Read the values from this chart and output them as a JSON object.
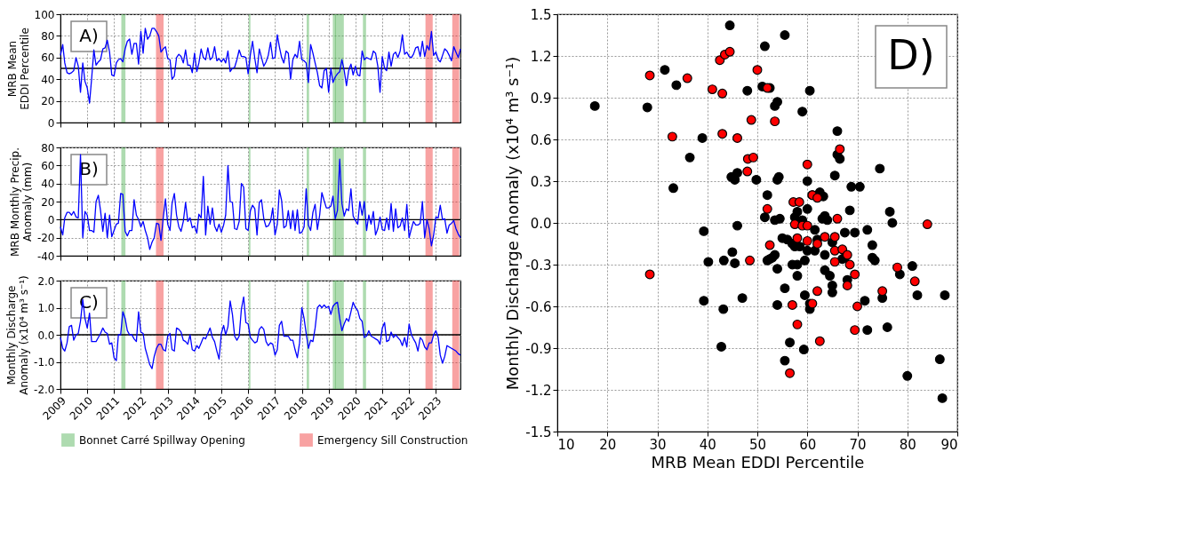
{
  "chart_data": [
    {
      "type": "line",
      "ylabel": "MRB Mean\nEDDI Percentile",
      "annotations": [
        "A)"
      ],
      "grid": true,
      "tick_labels": "y",
      "xlim": [
        "2009-01-01",
        "2023-12-01"
      ],
      "xticks": [
        "2009",
        "2010",
        "2011",
        "2012",
        "2013",
        "2014",
        "2015",
        "2016",
        "2017",
        "2018",
        "2019",
        "2020",
        "2021",
        "2022",
        "2023"
      ],
      "ylim": [
        0,
        100
      ],
      "yticks": [
        0,
        20,
        40,
        60,
        80,
        100
      ],
      "x": [
        "2009-01",
        "2009-02",
        "2009-03",
        "2009-04",
        "2009-05",
        "2009-06",
        "2009-07",
        "2009-08",
        "2009-09",
        "2009-10",
        "2009-11",
        "2009-12",
        "2010-01",
        "2010-02",
        "2010-03",
        "2010-04",
        "2010-05",
        "2010-06",
        "2010-07",
        "2010-08",
        "2010-09",
        "2010-10",
        "2010-11",
        "2010-12",
        "2011-01",
        "2011-02",
        "2011-03",
        "2011-04",
        "2011-05",
        "2011-06",
        "2011-07",
        "2011-08",
        "2011-09",
        "2011-10",
        "2011-11",
        "2011-12",
        "2012-01",
        "2012-02",
        "2012-03",
        "2012-04",
        "2012-05",
        "2012-06",
        "2012-07",
        "2012-08",
        "2012-09",
        "2012-10",
        "2012-11",
        "2012-12",
        "2013-01",
        "2013-02",
        "2013-03",
        "2013-04",
        "2013-05",
        "2013-06",
        "2013-07",
        "2013-08",
        "2013-09",
        "2013-10",
        "2013-11",
        "2013-12",
        "2014-01",
        "2014-02",
        "2014-03",
        "2014-04",
        "2014-05",
        "2014-06",
        "2014-07",
        "2014-08",
        "2014-09",
        "2014-10",
        "2014-11",
        "2014-12",
        "2015-01",
        "2015-02",
        "2015-03",
        "2015-04",
        "2015-05",
        "2015-06",
        "2015-07",
        "2015-08",
        "2015-09",
        "2015-10",
        "2015-11",
        "2015-12",
        "2016-01",
        "2016-02",
        "2016-03",
        "2016-04",
        "2016-05",
        "2016-06",
        "2016-07",
        "2016-08",
        "2016-09",
        "2016-10",
        "2016-11",
        "2016-12",
        "2017-01",
        "2017-02",
        "2017-03",
        "2017-04",
        "2017-05",
        "2017-06",
        "2017-07",
        "2017-08",
        "2017-09",
        "2017-10",
        "2017-11",
        "2017-12",
        "2018-01",
        "2018-02",
        "2018-03",
        "2018-04",
        "2018-05",
        "2018-06",
        "2018-07",
        "2018-08",
        "2018-09",
        "2018-10",
        "2018-11",
        "2018-12",
        "2019-01",
        "2019-02",
        "2019-03",
        "2019-04",
        "2019-05",
        "2019-06",
        "2019-07",
        "2019-08",
        "2019-09",
        "2019-10",
        "2019-11",
        "2019-12",
        "2020-01",
        "2020-02",
        "2020-03",
        "2020-04",
        "2020-05",
        "2020-06",
        "2020-07",
        "2020-08",
        "2020-09",
        "2020-10",
        "2020-11",
        "2020-12",
        "2021-01",
        "2021-02",
        "2021-03",
        "2021-04",
        "2021-05",
        "2021-06",
        "2021-07",
        "2021-08",
        "2021-09",
        "2021-10",
        "2021-11",
        "2021-12",
        "2022-01",
        "2022-02",
        "2022-03",
        "2022-04",
        "2022-05",
        "2022-06",
        "2022-07",
        "2022-08",
        "2022-09",
        "2022-10",
        "2022-11",
        "2022-12",
        "2023-01",
        "2023-02",
        "2023-03",
        "2023-04",
        "2023-05",
        "2023-06",
        "2023-07",
        "2023-08",
        "2023-09",
        "2023-10",
        "2023-11",
        "2023-12"
      ],
      "series": [
        {
          "color": "#0000ff",
          "values": [
            62,
            72,
            55,
            46,
            45,
            46,
            48,
            60,
            52,
            28,
            55,
            38,
            32,
            18,
            40,
            67,
            53,
            56,
            58,
            68,
            69,
            76,
            65,
            44,
            43,
            55,
            58,
            59,
            56,
            68,
            75,
            77,
            63,
            73,
            73,
            54,
            84,
            64,
            87,
            77,
            80,
            87,
            87,
            84,
            80,
            65,
            68,
            70,
            59,
            58,
            40,
            43,
            60,
            63,
            61,
            55,
            67,
            53,
            53,
            46,
            64,
            47,
            55,
            68,
            60,
            58,
            69,
            58,
            60,
            70,
            57,
            59,
            56,
            59,
            55,
            66,
            47,
            50,
            51,
            58,
            67,
            61,
            61,
            60,
            45,
            63,
            75,
            59,
            46,
            68,
            60,
            52,
            56,
            62,
            74,
            59,
            60,
            81,
            70,
            60,
            55,
            66,
            64,
            40,
            58,
            63,
            60,
            75,
            58,
            57,
            55,
            37,
            72,
            64,
            55,
            46,
            34,
            32,
            48,
            50,
            28,
            50,
            37,
            42,
            45,
            47,
            58,
            48,
            34,
            48,
            54,
            44,
            52,
            44,
            43,
            66,
            58,
            60,
            59,
            58,
            66,
            64,
            52,
            28,
            61,
            50,
            48,
            65,
            52,
            63,
            65,
            60,
            66,
            81,
            63,
            65,
            61,
            60,
            63,
            69,
            70,
            61,
            75,
            61,
            71,
            67,
            84,
            62,
            65,
            58,
            56,
            62,
            68,
            66,
            62,
            57,
            70,
            65,
            60,
            68
          ]
        }
      ],
      "ref_lines": [
        {
          "axis": "y",
          "value": 50,
          "color": "#000000"
        }
      ],
      "bands": [
        {
          "axis": "x",
          "from": "2011-04-10",
          "to": "2011-06-05",
          "color": "#4caf50"
        },
        {
          "axis": "x",
          "from": "2012-07-25",
          "to": "2012-11-05",
          "color": "#f03030"
        },
        {
          "axis": "x",
          "from": "2016-01-10",
          "to": "2016-02-01",
          "color": "#4caf50"
        },
        {
          "axis": "x",
          "from": "2018-03-08",
          "to": "2018-04-10",
          "color": "#4caf50"
        },
        {
          "axis": "x",
          "from": "2019-02-27",
          "to": "2019-04-11",
          "color": "#4caf50"
        },
        {
          "axis": "x",
          "from": "2019-04-01",
          "to": "2019-07-27",
          "color": "#4caf50"
        },
        {
          "axis": "x",
          "from": "2020-04-12",
          "to": "2020-05-25",
          "color": "#4caf50"
        },
        {
          "axis": "x",
          "from": "2022-08-12",
          "to": "2022-11-18",
          "color": "#f03030"
        },
        {
          "axis": "x",
          "from": "2023-08-12",
          "to": "2023-11-15",
          "color": "#f03030"
        }
      ]
    },
    {
      "type": "line",
      "ylabel": "MRB Monthly Precip.\nAnomaly (mm)",
      "annotations": [
        "B)"
      ],
      "grid": true,
      "tick_labels": "y",
      "xlim": [
        "2009-01-01",
        "2023-12-01"
      ],
      "xticks": [
        "2009",
        "2010",
        "2011",
        "2012",
        "2013",
        "2014",
        "2015",
        "2016",
        "2017",
        "2018",
        "2019",
        "2020",
        "2021",
        "2022",
        "2023"
      ],
      "ylim": [
        -40,
        80
      ],
      "yticks": [
        -40,
        -20,
        0,
        20,
        40,
        60,
        80
      ],
      "x": [
        "2009-01",
        "2009-02",
        "2009-03",
        "2009-04",
        "2009-05",
        "2009-06",
        "2009-07",
        "2009-08",
        "2009-09",
        "2009-10",
        "2009-11",
        "2009-12",
        "2010-01",
        "2010-02",
        "2010-03",
        "2010-04",
        "2010-05",
        "2010-06",
        "2010-07",
        "2010-08",
        "2010-09",
        "2010-10",
        "2010-11",
        "2010-12",
        "2011-01",
        "2011-02",
        "2011-03",
        "2011-04",
        "2011-05",
        "2011-06",
        "2011-07",
        "2011-08",
        "2011-09",
        "2011-10",
        "2011-11",
        "2011-12",
        "2012-01",
        "2012-02",
        "2012-03",
        "2012-04",
        "2012-05",
        "2012-06",
        "2012-07",
        "2012-08",
        "2012-09",
        "2012-10",
        "2012-11",
        "2012-12",
        "2013-01",
        "2013-02",
        "2013-03",
        "2013-04",
        "2013-05",
        "2013-06",
        "2013-07",
        "2013-08",
        "2013-09",
        "2013-10",
        "2013-11",
        "2013-12",
        "2014-01",
        "2014-02",
        "2014-03",
        "2014-04",
        "2014-05",
        "2014-06",
        "2014-07",
        "2014-08",
        "2014-09",
        "2014-10",
        "2014-11",
        "2014-12",
        "2015-01",
        "2015-02",
        "2015-03",
        "2015-04",
        "2015-05",
        "2015-06",
        "2015-07",
        "2015-08",
        "2015-09",
        "2015-10",
        "2015-11",
        "2015-12",
        "2016-01",
        "2016-02",
        "2016-03",
        "2016-04",
        "2016-05",
        "2016-06",
        "2016-07",
        "2016-08",
        "2016-09",
        "2016-10",
        "2016-11",
        "2016-12",
        "2017-01",
        "2017-02",
        "2017-03",
        "2017-04",
        "2017-05",
        "2017-06",
        "2017-07",
        "2017-08",
        "2017-09",
        "2017-10",
        "2017-11",
        "2017-12",
        "2018-01",
        "2018-02",
        "2018-03",
        "2018-04",
        "2018-05",
        "2018-06",
        "2018-07",
        "2018-08",
        "2018-09",
        "2018-10",
        "2018-11",
        "2018-12",
        "2019-01",
        "2019-02",
        "2019-03",
        "2019-04",
        "2019-05",
        "2019-06",
        "2019-07",
        "2019-08",
        "2019-09",
        "2019-10",
        "2019-11",
        "2019-12",
        "2020-01",
        "2020-02",
        "2020-03",
        "2020-04",
        "2020-05",
        "2020-06",
        "2020-07",
        "2020-08",
        "2020-09",
        "2020-10",
        "2020-11",
        "2020-12",
        "2021-01",
        "2021-02",
        "2021-03",
        "2021-04",
        "2021-05",
        "2021-06",
        "2021-07",
        "2021-08",
        "2021-09",
        "2021-10",
        "2021-11",
        "2021-12",
        "2022-01",
        "2022-02",
        "2022-03",
        "2022-04",
        "2022-05",
        "2022-06",
        "2022-07",
        "2022-08",
        "2022-09",
        "2022-10",
        "2022-11",
        "2022-12",
        "2023-01",
        "2023-02",
        "2023-03",
        "2023-04",
        "2023-05",
        "2023-06",
        "2023-07",
        "2023-08",
        "2023-09",
        "2023-10",
        "2023-11",
        "2023-12"
      ],
      "series": [
        {
          "color": "#0000ff",
          "values": [
            -8,
            -17,
            2,
            8,
            8,
            5,
            9,
            3,
            2,
            72,
            -20,
            9,
            5,
            -12,
            -12,
            -14,
            20,
            27,
            10,
            -13,
            7,
            -20,
            5,
            -19,
            -12,
            -5,
            -4,
            29,
            28,
            -13,
            -18,
            -12,
            -12,
            22,
            5,
            0,
            -8,
            -2,
            -12,
            -20,
            -33,
            -25,
            -20,
            -4,
            -5,
            -23,
            2,
            23,
            -5,
            -12,
            18,
            29,
            5,
            -8,
            -13,
            -2,
            19,
            -2,
            2,
            -9,
            -7,
            -15,
            6,
            2,
            48,
            -17,
            15,
            -5,
            13,
            -7,
            -13,
            -5,
            -14,
            -6,
            5,
            60,
            20,
            19,
            -10,
            -11,
            -2,
            40,
            36,
            -10,
            -12,
            10,
            16,
            12,
            -17,
            19,
            22,
            1,
            -8,
            -7,
            -2,
            13,
            -17,
            -5,
            33,
            21,
            -9,
            -7,
            10,
            -10,
            10,
            -12,
            11,
            -15,
            -14,
            -8,
            34,
            -6,
            -12,
            8,
            17,
            -11,
            5,
            30,
            21,
            13,
            13,
            15,
            26,
            1,
            10,
            67,
            18,
            4,
            12,
            10,
            34,
            4,
            -1,
            -5,
            20,
            5,
            20,
            -12,
            5,
            -5,
            9,
            -17,
            -10,
            3,
            -11,
            -12,
            2,
            -11,
            18,
            -13,
            12,
            -9,
            -7,
            2,
            -12,
            17,
            -20,
            -10,
            -2,
            -6,
            -6,
            -4,
            20,
            -20,
            0,
            -10,
            -29,
            -17,
            3,
            2,
            16,
            0,
            1,
            -15,
            -6,
            -4,
            -1,
            -10,
            -16,
            -20
          ]
        }
      ],
      "ref_lines": [
        {
          "axis": "y",
          "value": 0,
          "color": "#000000"
        }
      ],
      "bands": [
        {
          "axis": "x",
          "from": "2011-04-10",
          "to": "2011-06-05",
          "color": "#4caf50"
        },
        {
          "axis": "x",
          "from": "2012-07-25",
          "to": "2012-11-05",
          "color": "#f03030"
        },
        {
          "axis": "x",
          "from": "2016-01-10",
          "to": "2016-02-01",
          "color": "#4caf50"
        },
        {
          "axis": "x",
          "from": "2018-03-08",
          "to": "2018-04-10",
          "color": "#4caf50"
        },
        {
          "axis": "x",
          "from": "2019-02-27",
          "to": "2019-04-11",
          "color": "#4caf50"
        },
        {
          "axis": "x",
          "from": "2019-04-01",
          "to": "2019-07-27",
          "color": "#4caf50"
        },
        {
          "axis": "x",
          "from": "2020-04-12",
          "to": "2020-05-25",
          "color": "#4caf50"
        },
        {
          "axis": "x",
          "from": "2022-08-12",
          "to": "2022-11-18",
          "color": "#f03030"
        },
        {
          "axis": "x",
          "from": "2023-08-12",
          "to": "2023-11-15",
          "color": "#f03030"
        }
      ]
    },
    {
      "type": "line",
      "ylabel": "Monthly Discharge\nAnomaly (x10⁴ m³ s⁻¹)",
      "annotations": [
        "C)"
      ],
      "grid": true,
      "legend": "bottom",
      "xlim": [
        "2009-01-01",
        "2023-12-01"
      ],
      "xticks": [
        "2009",
        "2010",
        "2011",
        "2012",
        "2013",
        "2014",
        "2015",
        "2016",
        "2017",
        "2018",
        "2019",
        "2020",
        "2021",
        "2022",
        "2023"
      ],
      "ylim": [
        -2,
        2
      ],
      "yticks": [
        {
          "value": -2,
          "label": "-2.0"
        },
        {
          "value": -1,
          "label": "-1.0"
        },
        {
          "value": 0,
          "label": "0.0"
        },
        {
          "value": 1,
          "label": "1.0"
        },
        {
          "value": 2,
          "label": "2.0"
        }
      ],
      "x": [
        "2009-01",
        "2009-02",
        "2009-03",
        "2009-04",
        "2009-05",
        "2009-06",
        "2009-07",
        "2009-08",
        "2009-09",
        "2009-10",
        "2009-11",
        "2009-12",
        "2010-01",
        "2010-02",
        "2010-03",
        "2010-04",
        "2010-05",
        "2010-06",
        "2010-07",
        "2010-08",
        "2010-09",
        "2010-10",
        "2010-11",
        "2010-12",
        "2011-01",
        "2011-02",
        "2011-03",
        "2011-04",
        "2011-05",
        "2011-06",
        "2011-07",
        "2011-08",
        "2011-09",
        "2011-10",
        "2011-11",
        "2011-12",
        "2012-01",
        "2012-02",
        "2012-03",
        "2012-04",
        "2012-05",
        "2012-06",
        "2012-07",
        "2012-08",
        "2012-09",
        "2012-10",
        "2012-11",
        "2012-12",
        "2013-01",
        "2013-02",
        "2013-03",
        "2013-04",
        "2013-05",
        "2013-06",
        "2013-07",
        "2013-08",
        "2013-09",
        "2013-10",
        "2013-11",
        "2013-12",
        "2014-01",
        "2014-02",
        "2014-03",
        "2014-04",
        "2014-05",
        "2014-06",
        "2014-07",
        "2014-08",
        "2014-09",
        "2014-10",
        "2014-11",
        "2014-12",
        "2015-01",
        "2015-02",
        "2015-03",
        "2015-04",
        "2015-05",
        "2015-06",
        "2015-07",
        "2015-08",
        "2015-09",
        "2015-10",
        "2015-11",
        "2015-12",
        "2016-01",
        "2016-02",
        "2016-03",
        "2016-04",
        "2016-05",
        "2016-06",
        "2016-07",
        "2016-08",
        "2016-09",
        "2016-10",
        "2016-11",
        "2016-12",
        "2017-01",
        "2017-02",
        "2017-03",
        "2017-04",
        "2017-05",
        "2017-06",
        "2017-07",
        "2017-08",
        "2017-09",
        "2017-10",
        "2017-11",
        "2017-12",
        "2018-01",
        "2018-02",
        "2018-03",
        "2018-04",
        "2018-05",
        "2018-06",
        "2018-07",
        "2018-08",
        "2018-09",
        "2018-10",
        "2018-11",
        "2018-12",
        "2019-01",
        "2019-02",
        "2019-03",
        "2019-04",
        "2019-05",
        "2019-06",
        "2019-07",
        "2019-08",
        "2019-09",
        "2019-10",
        "2019-11",
        "2019-12",
        "2020-01",
        "2020-02",
        "2020-03",
        "2020-04",
        "2020-05",
        "2020-06",
        "2020-07",
        "2020-08",
        "2020-09",
        "2020-10",
        "2020-11",
        "2020-12",
        "2021-01",
        "2021-02",
        "2021-03",
        "2021-04",
        "2021-05",
        "2021-06",
        "2021-07",
        "2021-08",
        "2021-09",
        "2021-10",
        "2021-11",
        "2021-12",
        "2022-01",
        "2022-02",
        "2022-03",
        "2022-04",
        "2022-05",
        "2022-06",
        "2022-07",
        "2022-08",
        "2022-09",
        "2022-10",
        "2022-11",
        "2022-12",
        "2023-01",
        "2023-02",
        "2023-03",
        "2023-04",
        "2023-05",
        "2023-06",
        "2023-07",
        "2023-08",
        "2023-09",
        "2023-10",
        "2023-11",
        "2023-12"
      ],
      "series": [
        {
          "color": "#0000ff",
          "values": [
            -0.1,
            -0.5,
            -0.6,
            -0.3,
            0.3,
            0.35,
            -0.2,
            0,
            0.05,
            0.5,
            1.3,
            0.6,
            0.25,
            0.8,
            -0.25,
            -0.25,
            -0.25,
            -0.1,
            0.05,
            0.25,
            0.1,
            0.05,
            -0.35,
            -0.3,
            -0.85,
            -0.95,
            0,
            0,
            0.85,
            0.6,
            0.15,
            0,
            0,
            -0.15,
            -0.25,
            0.85,
            0.1,
            0.05,
            -0.5,
            -0.8,
            -1.1,
            -1.25,
            -0.8,
            -0.5,
            -0.35,
            -0.35,
            -0.55,
            -0.6,
            -0.05,
            0.05,
            -0.55,
            -0.6,
            0.25,
            0.2,
            0.1,
            -0.2,
            -0.25,
            -0.35,
            0,
            -0.55,
            -0.6,
            -0.4,
            -0.5,
            -0.3,
            -0.1,
            -0.15,
            0.05,
            0.25,
            -0.1,
            -0.25,
            -0.6,
            -0.9,
            0.05,
            0.35,
            0,
            0.3,
            1.25,
            0.75,
            -0.05,
            -0.2,
            -0.05,
            0.95,
            1.4,
            0.45,
            0.4,
            -0.1,
            -0.2,
            -0.3,
            -0.25,
            0.2,
            0.3,
            0.2,
            -0.25,
            -0.4,
            -0.3,
            -0.35,
            -0.75,
            -0.55,
            0.35,
            0.5,
            -0.05,
            -0.05,
            -0.05,
            -0.2,
            -0.2,
            -0.55,
            -0.85,
            -0.3,
            1.0,
            0.6,
            0.05,
            -0.5,
            -0.2,
            -0.25,
            0.25,
            1.0,
            1.1,
            1.0,
            1.1,
            1.0,
            1.05,
            0.75,
            1.05,
            1.15,
            1.2,
            0.6,
            0.15,
            0.4,
            0.6,
            0.5,
            0.85,
            1.2,
            1.0,
            0.9,
            0.6,
            0.5,
            -0.1,
            -0.05,
            0.15,
            -0.05,
            -0.1,
            -0.15,
            -0.2,
            -0.35,
            0.25,
            0.45,
            -0.25,
            -0.2,
            0.1,
            -0.1,
            0,
            -0.1,
            -0.2,
            -0.4,
            -0.1,
            -0.45,
            0.4,
            0,
            -0.15,
            -0.3,
            -0.6,
            -0.1,
            -0.2,
            -0.45,
            -0.55,
            -0.3,
            -0.3,
            0,
            0.15,
            -0.1,
            -0.75,
            -1.05,
            -0.8,
            -0.4,
            -0.45,
            -0.5,
            -0.55,
            -0.6,
            -0.7,
            -0.75
          ]
        }
      ],
      "ref_lines": [
        {
          "axis": "y",
          "value": 0,
          "color": "#000000"
        }
      ],
      "bands": [
        {
          "axis": "x",
          "from": "2011-04-10",
          "to": "2011-06-05",
          "color": "#4caf50",
          "label": "Bonnet Carré Spillway Opening"
        },
        {
          "axis": "x",
          "from": "2012-07-25",
          "to": "2012-11-05",
          "color": "#f03030",
          "label": "Emergency Sill Construction"
        },
        {
          "axis": "x",
          "from": "2016-01-10",
          "to": "2016-02-01",
          "color": "#4caf50"
        },
        {
          "axis": "x",
          "from": "2018-03-08",
          "to": "2018-04-10",
          "color": "#4caf50"
        },
        {
          "axis": "x",
          "from": "2019-02-27",
          "to": "2019-04-11",
          "color": "#4caf50"
        },
        {
          "axis": "x",
          "from": "2019-04-01",
          "to": "2019-07-27",
          "color": "#4caf50"
        },
        {
          "axis": "x",
          "from": "2020-04-12",
          "to": "2020-05-25",
          "color": "#4caf50"
        },
        {
          "axis": "x",
          "from": "2022-08-12",
          "to": "2022-11-18",
          "color": "#f03030"
        },
        {
          "axis": "x",
          "from": "2023-08-12",
          "to": "2023-11-15",
          "color": "#f03030"
        }
      ]
    },
    {
      "type": "scatter",
      "xlabel": "MRB Mean EDDI Percentile",
      "ylabel": "Monthly Discharge Anomaly (x10⁴ m³ s⁻¹)",
      "annotations": [
        "D)"
      ],
      "grid": true,
      "marker": "circle",
      "xlim": [
        10,
        90
      ],
      "xticks": [
        10,
        20,
        30,
        40,
        50,
        60,
        70,
        80,
        90
      ],
      "ylim": [
        -1.5,
        1.5
      ],
      "yticks": [
        -1.5,
        -1.2,
        -0.9,
        -0.6,
        -0.3,
        {
          "value": 0,
          "label": "0.0"
        },
        0.3,
        0.6,
        0.9,
        1.2,
        1.5
      ],
      "series": [
        {
          "color": "#000000",
          "x": [
            17.5,
            28,
            31.5,
            33.8,
            33.2,
            36.5,
            39,
            39.3,
            40.2,
            39.3,
            43.2,
            42.8,
            43.3,
            44.5,
            44.8,
            45.5,
            46,
            45,
            46,
            45.5,
            47,
            48,
            49.8,
            51,
            51.5,
            52.5,
            53.5,
            54,
            55.5,
            54,
            54.3,
            52,
            51.5,
            53.5,
            54.5,
            52,
            53,
            53.5,
            54,
            52.5,
            55.5,
            54,
            55.5,
            56.5,
            59.3,
            59,
            60.5,
            60,
            61,
            62.5,
            63.2,
            63.5,
            64,
            63,
            60,
            58,
            57.5,
            59,
            61.5,
            56,
            57,
            57.5,
            58.5,
            60,
            61.5,
            57,
            58,
            59.5,
            58,
            63.5,
            64.5,
            65,
            63.5,
            65,
            59.5,
            60.5,
            60.5,
            66,
            66,
            66.5,
            65.5,
            68.8,
            70.5,
            68.5,
            67.5,
            69.5,
            72,
            67.5,
            67,
            73,
            73,
            73.5,
            68,
            71.5,
            75,
            74.5,
            76.5,
            77,
            78.5,
            81,
            82,
            76,
            72,
            80,
            86.5,
            87,
            87.5,
            65,
            62,
            55
          ],
          "values": [
            0.84,
            0.83,
            1.1,
            0.99,
            0.25,
            0.47,
            0.61,
            -0.06,
            -0.28,
            -0.56,
            -0.62,
            -0.89,
            -0.27,
            1.42,
            0.33,
            0.31,
            0.36,
            -0.21,
            -0.02,
            -0.29,
            -0.54,
            0.95,
            0.31,
            0.98,
            1.27,
            0.97,
            0.84,
            0.87,
            1.35,
            0.31,
            0.33,
            0.2,
            0.04,
            0.02,
            0.03,
            -0.27,
            -0.25,
            -0.23,
            -0.33,
            -0.26,
            -0.47,
            -0.59,
            -0.99,
            -0.86,
            -0.91,
            0.8,
            0.95,
            0.3,
            0.2,
            0.22,
            0.19,
            0.05,
            0.02,
            0.03,
            0.1,
            0.08,
            0.04,
            0.02,
            -0.05,
            -0.12,
            -0.15,
            -0.17,
            -0.17,
            -0.2,
            -0.2,
            -0.3,
            -0.3,
            -0.27,
            -0.38,
            -0.23,
            -0.38,
            -0.45,
            -0.34,
            -0.5,
            -0.52,
            -0.58,
            -0.62,
            0.66,
            0.49,
            0.46,
            0.34,
            0.26,
            0.26,
            0.09,
            -0.07,
            -0.07,
            -0.05,
            -0.25,
            -0.26,
            -0.16,
            -0.25,
            -0.27,
            -0.41,
            -0.56,
            -0.54,
            0.39,
            0.08,
            0.0,
            -0.37,
            -0.31,
            -0.52,
            -0.75,
            -0.77,
            -1.1,
            -0.98,
            -1.26,
            -0.52,
            -0.14,
            -0.12,
            -0.11
          ]
        },
        {
          "color": "#ff0000",
          "x": [
            28.5,
            28.5,
            33,
            36,
            41,
            42.5,
            43.5,
            44.5,
            43,
            43,
            46,
            48,
            48.1,
            49.2,
            48.8,
            50,
            52,
            48.5,
            52.5,
            52,
            53.5,
            57.2,
            58.4,
            60,
            61,
            62,
            57.5,
            59,
            60,
            58,
            60,
            62,
            63.5,
            65.5,
            66,
            66.5,
            65.5,
            65.5,
            67,
            68,
            68.5,
            68,
            69.5,
            62,
            57,
            61,
            58,
            62.5,
            56.5,
            70,
            69.5,
            75,
            78,
            81.5,
            84
          ],
          "values": [
            1.06,
            -0.37,
            0.62,
            1.04,
            0.96,
            1.17,
            1.21,
            1.23,
            0.93,
            0.64,
            0.61,
            0.37,
            0.46,
            0.47,
            0.74,
            1.1,
            0.97,
            -0.27,
            -0.16,
            0.1,
            0.73,
            0.15,
            0.15,
            0.42,
            0.2,
            0.18,
            -0.01,
            -0.02,
            -0.02,
            -0.11,
            -0.13,
            -0.15,
            -0.1,
            -0.1,
            0.03,
            0.53,
            -0.2,
            -0.28,
            -0.19,
            -0.23,
            -0.3,
            -0.45,
            -0.37,
            -0.49,
            -0.59,
            -0.58,
            -0.73,
            -0.85,
            -1.08,
            -0.6,
            -0.77,
            -0.49,
            -0.32,
            -0.42,
            -0.01
          ]
        }
      ]
    }
  ]
}
